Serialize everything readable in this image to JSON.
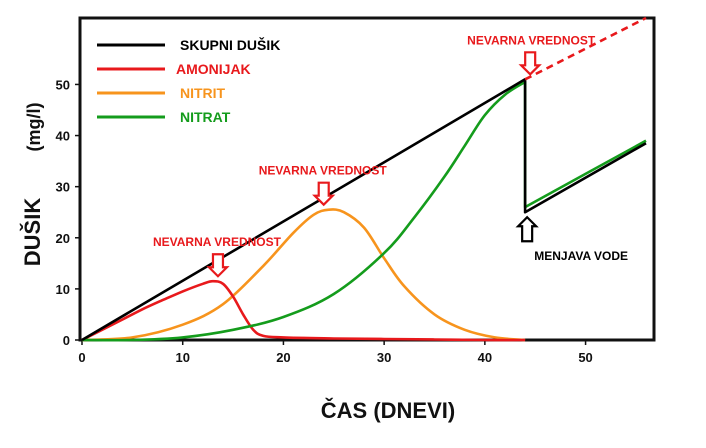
{
  "chart_data": {
    "type": "line",
    "xlabel": "ČAS (DNEVI)",
    "ylabel": "DUŠIK",
    "ylabel_unit": "(mg/l)",
    "xlim": [
      0,
      56
    ],
    "ylim": [
      0,
      63
    ],
    "x_ticks": [
      0,
      10,
      20,
      30,
      40,
      50
    ],
    "y_ticks": [
      0,
      10,
      20,
      30,
      40,
      50
    ],
    "grid": false,
    "legend_position": "top-left",
    "series": [
      {
        "name": "SKUPNI DUŠIK",
        "color": "#000000",
        "x": [
          0,
          44,
          44,
          56
        ],
        "y": [
          0,
          51,
          25,
          38.5
        ]
      },
      {
        "name": "AMONIJAK",
        "color": "#e8191c",
        "x": [
          0,
          2,
          4,
          6,
          8,
          10,
          12,
          13,
          14,
          15,
          16,
          17,
          18,
          20,
          25,
          30,
          35,
          40,
          44
        ],
        "y": [
          0,
          2,
          4,
          6,
          7.8,
          9.5,
          11,
          11.5,
          11,
          8.5,
          5,
          2,
          0.8,
          0.5,
          0.3,
          0.2,
          0.1,
          0,
          0
        ]
      },
      {
        "name": "NITRIT",
        "color": "#f7941d",
        "x": [
          0,
          5,
          10,
          14,
          18,
          21,
          23,
          24.5,
          26,
          28,
          30,
          32,
          35,
          38,
          41,
          44
        ],
        "y": [
          0,
          0.5,
          3,
          7,
          14.5,
          21,
          24.5,
          25.5,
          25,
          22,
          16,
          10.5,
          5,
          2,
          0.5,
          0
        ]
      },
      {
        "name": "NITRAT",
        "color": "#149c1c",
        "x": [
          0,
          5,
          10,
          15,
          20,
          25,
          30,
          33,
          36,
          38,
          40,
          42,
          44,
          44,
          56
        ],
        "y": [
          0,
          0,
          0.5,
          2,
          4.5,
          9,
          17,
          24,
          32,
          38,
          44,
          48,
          50.5,
          26,
          39
        ]
      }
    ],
    "extension": {
      "x": [
        44,
        56
      ],
      "y": [
        51,
        63
      ],
      "color": "#e8191c"
    },
    "annotations": [
      {
        "text": "NEVARNA VREDNOST",
        "x": 13.5,
        "y": 11.5,
        "color": "#e8191c"
      },
      {
        "text": "NEVARNA VREDNOST",
        "x": 24,
        "y": 25.5,
        "color": "#e8191c"
      },
      {
        "text": "NEVARNA VREDNOST",
        "x": 44.5,
        "y": 51,
        "color": "#e8191c"
      },
      {
        "text": "MENJAVA VODE",
        "x": 44.2,
        "y": 25,
        "color": "#000000"
      }
    ]
  }
}
